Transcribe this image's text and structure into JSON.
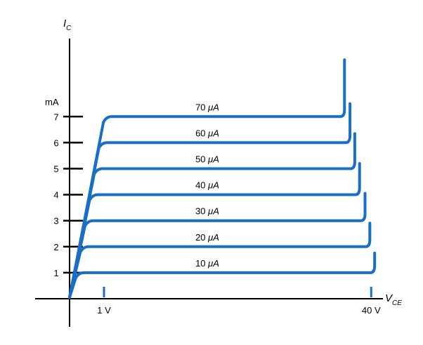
{
  "chart_data": {
    "type": "line",
    "title": "",
    "xlabel": {
      "main": "V",
      "sub": "CE"
    },
    "ylabel": {
      "main": "I",
      "sub": "C"
    },
    "y_unit_label": "mA",
    "x_ticks": [
      {
        "value": 1,
        "label": "1 V"
      },
      {
        "value": 40,
        "label": "40 V"
      }
    ],
    "y_ticks": [
      1,
      2,
      3,
      4,
      5,
      6,
      7
    ],
    "ylim": [
      0,
      8.6
    ],
    "xlim": [
      0,
      46
    ],
    "line_color": "#1a6fc4",
    "series": [
      {
        "name": "10 μA",
        "label_main": "10 ",
        "label_unit": "μA",
        "ic": 1,
        "breakdown_v": 40.3
      },
      {
        "name": "20 μA",
        "label_main": "20 ",
        "label_unit": "μA",
        "ic": 2,
        "breakdown_v": 39.6
      },
      {
        "name": "30 μA",
        "label_main": "30 ",
        "label_unit": "μA",
        "ic": 3,
        "breakdown_v": 38.9
      },
      {
        "name": "40 μA",
        "label_main": "40 ",
        "label_unit": "μA",
        "ic": 4,
        "breakdown_v": 38.1
      },
      {
        "name": "50 μA",
        "label_main": "50 ",
        "label_unit": "μA",
        "ic": 5,
        "breakdown_v": 37.4
      },
      {
        "name": "60 μA",
        "label_main": "60 ",
        "label_unit": "μA",
        "ic": 6,
        "breakdown_v": 36.7
      },
      {
        "name": "70 μA",
        "label_main": "70 ",
        "label_unit": "μA",
        "ic": 7,
        "breakdown_v": 35.9
      }
    ]
  }
}
